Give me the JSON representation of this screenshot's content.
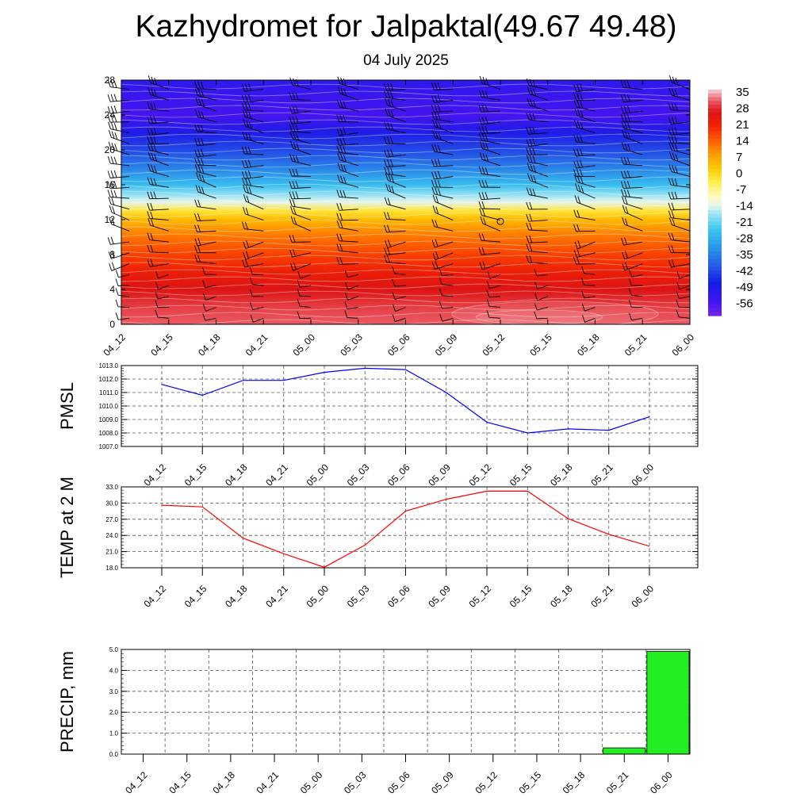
{
  "title": "Kazhydromet for Jalpaktal(49.67 49.48)",
  "subtitle": "04 July 2025",
  "chart_data": [
    {
      "type": "heatmap",
      "x_ticks": [
        "04_12",
        "04_15",
        "04_18",
        "04_21",
        "05_00",
        "05_03",
        "05_06",
        "05_09",
        "05_12",
        "05_15",
        "05_18",
        "05_21",
        "06_00"
      ],
      "y_ticks": [
        0,
        4,
        8,
        12,
        16,
        20,
        24,
        28
      ],
      "ylim": [
        0,
        28
      ],
      "colorbar_labels": [
        35,
        28,
        21,
        14,
        7,
        0,
        -7,
        -14,
        -21,
        -28,
        -35,
        -42,
        -49,
        -56
      ],
      "profile": {
        "levels": [
          0,
          2,
          4,
          6,
          8,
          10,
          12,
          13,
          14,
          15,
          16,
          18,
          20,
          22,
          24,
          26,
          28
        ],
        "values": [
          33,
          31,
          28,
          24,
          19,
          14,
          6,
          0,
          -12,
          -17,
          -24,
          -33,
          -40,
          -47,
          -54,
          -52,
          -50
        ]
      },
      "overlay": "wind barbs and white contour lines"
    },
    {
      "type": "line",
      "ylabel": "PMSL",
      "categories": [
        "04_12",
        "04_15",
        "04_18",
        "04_21",
        "05_00",
        "05_03",
        "05_06",
        "05_09",
        "05_12",
        "05_15",
        "05_18",
        "05_21",
        "06_00"
      ],
      "values": [
        1011.6,
        1010.8,
        1011.9,
        1011.9,
        1012.5,
        1012.8,
        1012.7,
        1011.0,
        1008.8,
        1008.0,
        1008.3,
        1008.2,
        1009.2
      ],
      "ylim": [
        1007.0,
        1013.0
      ],
      "y_ticks": [
        "1007.0",
        "1008.0",
        "1009.0",
        "1010.0",
        "1011.0",
        "1012.0",
        "1013.0"
      ],
      "color": "#0000ff",
      "grid": true
    },
    {
      "type": "line",
      "ylabel": "TEMP at 2 M",
      "categories": [
        "04_12",
        "04_15",
        "04_18",
        "04_21",
        "05_00",
        "05_03",
        "05_06",
        "05_09",
        "05_12",
        "05_15",
        "05_18",
        "05_21",
        "06_00"
      ],
      "values": [
        29.6,
        29.3,
        23.5,
        20.6,
        18.1,
        22.2,
        28.5,
        30.7,
        32.2,
        32.2,
        27.1,
        24.2,
        22.0
      ],
      "ylim": [
        18.0,
        33.0
      ],
      "y_ticks": [
        "18.0",
        "21.0",
        "24.0",
        "27.0",
        "30.0",
        "33.0"
      ],
      "color": "#ff0000",
      "grid": true
    },
    {
      "type": "bar",
      "ylabel": "PRECIP, mm",
      "categories": [
        "04_12",
        "04_15",
        "04_18",
        "04_21",
        "05_00",
        "05_03",
        "05_06",
        "05_09",
        "05_12",
        "05_15",
        "05_18",
        "05_21",
        "06_00"
      ],
      "values": [
        0,
        0,
        0,
        0,
        0,
        0,
        0,
        0,
        0,
        0,
        0,
        0.3,
        4.9
      ],
      "ylim": [
        0.0,
        5.0
      ],
      "y_ticks": [
        "0.0",
        "1.0",
        "2.0",
        "3.0",
        "4.0",
        "5.0"
      ],
      "color": "#22ee22",
      "grid": true
    }
  ]
}
